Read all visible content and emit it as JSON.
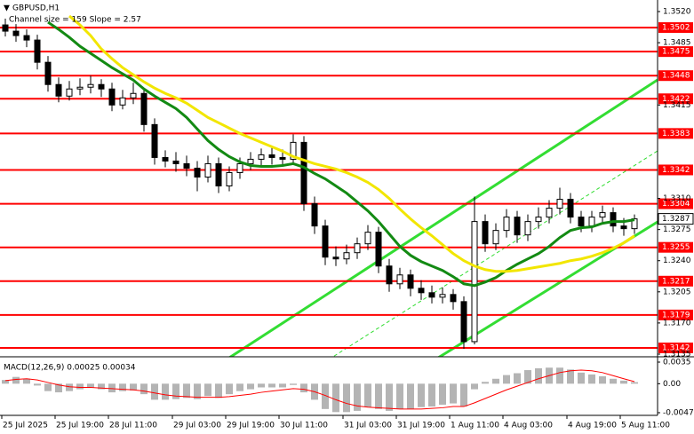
{
  "chart_data": {
    "type": "candlestick",
    "title": "GBPUSD,H1",
    "subtitle": "Channel size = 159 Slope = 2.57",
    "categories": [
      "25 Jul 2025",
      null,
      null,
      null,
      null,
      "25 Jul 19:00",
      null,
      null,
      null,
      null,
      "28 Jul 11:00",
      null,
      null,
      null,
      null,
      null,
      "29 Jul 03:00",
      null,
      null,
      null,
      null,
      "29 Jul 19:00",
      null,
      null,
      null,
      null,
      "30 Jul 11:00",
      null,
      null,
      null,
      null,
      null,
      "31 Jul 03:00",
      null,
      null,
      null,
      null,
      "31 Jul 19:00",
      null,
      null,
      null,
      null,
      "1 Aug 11:00",
      null,
      null,
      null,
      null,
      "4 Aug 03:00",
      null,
      null,
      null,
      null,
      null,
      "4 Aug 19:00",
      null,
      null,
      null,
      null,
      "5 Aug 11:00",
      null
    ],
    "candles": [
      [
        1.3505,
        1.3512,
        1.3492,
        1.3498
      ],
      [
        1.3498,
        1.3506,
        1.3486,
        1.3493
      ],
      [
        1.3493,
        1.35,
        1.348,
        1.3488
      ],
      [
        1.3488,
        1.3494,
        1.3455,
        1.3463
      ],
      [
        1.3463,
        1.347,
        1.343,
        1.3438
      ],
      [
        1.3438,
        1.3446,
        1.3418,
        1.3425
      ],
      [
        1.3425,
        1.3442,
        1.342,
        1.3433
      ],
      [
        1.3433,
        1.3445,
        1.3426,
        1.3435
      ],
      [
        1.3435,
        1.3448,
        1.3428,
        1.3438
      ],
      [
        1.3438,
        1.3444,
        1.3424,
        1.3433
      ],
      [
        1.3433,
        1.344,
        1.3408,
        1.3415
      ],
      [
        1.3415,
        1.3432,
        1.341,
        1.3423
      ],
      [
        1.3423,
        1.344,
        1.3416,
        1.3428
      ],
      [
        1.3428,
        1.3434,
        1.3385,
        1.3393
      ],
      [
        1.3393,
        1.34,
        1.3348,
        1.3356
      ],
      [
        1.3356,
        1.3364,
        1.3345,
        1.3352
      ],
      [
        1.3352,
        1.3362,
        1.334,
        1.3349
      ],
      [
        1.3349,
        1.3358,
        1.3335,
        1.3344
      ],
      [
        1.3344,
        1.3352,
        1.3318,
        1.3334
      ],
      [
        1.3334,
        1.3358,
        1.3328,
        1.3349
      ],
      [
        1.3349,
        1.3356,
        1.3316,
        1.3324
      ],
      [
        1.3324,
        1.3346,
        1.3318,
        1.3339
      ],
      [
        1.3339,
        1.3356,
        1.3332,
        1.3349
      ],
      [
        1.3349,
        1.3362,
        1.3342,
        1.3354
      ],
      [
        1.3354,
        1.3366,
        1.3346,
        1.3359
      ],
      [
        1.3359,
        1.3368,
        1.3348,
        1.3356
      ],
      [
        1.3356,
        1.3365,
        1.3346,
        1.3354
      ],
      [
        1.3354,
        1.3382,
        1.3348,
        1.3373
      ],
      [
        1.3373,
        1.338,
        1.3296,
        1.3304
      ],
      [
        1.3304,
        1.3312,
        1.327,
        1.3279
      ],
      [
        1.3279,
        1.3286,
        1.3235,
        1.3244
      ],
      [
        1.3244,
        1.3256,
        1.3234,
        1.3242
      ],
      [
        1.3242,
        1.3258,
        1.3236,
        1.3249
      ],
      [
        1.3249,
        1.3266,
        1.3242,
        1.3259
      ],
      [
        1.3259,
        1.328,
        1.3252,
        1.3272
      ],
      [
        1.3272,
        1.3278,
        1.3226,
        1.3234
      ],
      [
        1.3234,
        1.3242,
        1.3205,
        1.3214
      ],
      [
        1.3214,
        1.3232,
        1.3208,
        1.3224
      ],
      [
        1.3224,
        1.323,
        1.32,
        1.3209
      ],
      [
        1.3209,
        1.3218,
        1.3196,
        1.3204
      ],
      [
        1.3204,
        1.3212,
        1.3192,
        1.3199
      ],
      [
        1.3199,
        1.321,
        1.3192,
        1.3202
      ],
      [
        1.3202,
        1.3208,
        1.3185,
        1.3194
      ],
      [
        1.3194,
        1.32,
        1.3141,
        1.3149
      ],
      [
        1.3149,
        1.3312,
        1.3146,
        1.3284
      ],
      [
        1.3284,
        1.3292,
        1.325,
        1.3259
      ],
      [
        1.3259,
        1.3282,
        1.3252,
        1.3274
      ],
      [
        1.3274,
        1.3298,
        1.3266,
        1.3289
      ],
      [
        1.3289,
        1.3296,
        1.326,
        1.3269
      ],
      [
        1.3269,
        1.3292,
        1.3262,
        1.3284
      ],
      [
        1.3284,
        1.33,
        1.3276,
        1.3289
      ],
      [
        1.3289,
        1.3308,
        1.3282,
        1.3299
      ],
      [
        1.3299,
        1.3322,
        1.3292,
        1.3309
      ],
      [
        1.3309,
        1.3316,
        1.3282,
        1.3289
      ],
      [
        1.3289,
        1.3296,
        1.3272,
        1.3279
      ],
      [
        1.3279,
        1.3296,
        1.3272,
        1.3289
      ],
      [
        1.3289,
        1.3302,
        1.3282,
        1.3294
      ],
      [
        1.3294,
        1.33,
        1.3272,
        1.3279
      ],
      [
        1.3279,
        1.3288,
        1.3268,
        1.3276
      ],
      [
        1.3276,
        1.3292,
        1.327,
        1.3287
      ]
    ],
    "lines": [
      {
        "color": "#138a13",
        "values": [
          null,
          null,
          null,
          null,
          1.3508,
          1.35,
          1.3491,
          1.3481,
          1.3473,
          1.3465,
          1.3457,
          1.345,
          1.3443,
          1.3433,
          1.3425,
          1.3418,
          1.3411,
          1.3401,
          1.3388,
          1.3375,
          1.3365,
          1.3357,
          1.3351,
          1.3347,
          1.3346,
          1.3346,
          1.3347,
          1.3349,
          1.3345,
          1.3338,
          1.3332,
          1.3324,
          1.3316,
          1.3306,
          1.3296,
          1.3284,
          1.327,
          1.3256,
          1.3246,
          1.3239,
          1.3234,
          1.3229,
          1.3222,
          1.3214,
          1.3212,
          1.3216,
          1.3221,
          1.3229,
          1.3236,
          1.3242,
          1.3248,
          1.3256,
          1.3266,
          1.3274,
          1.3277,
          1.3278,
          1.3282,
          1.3284,
          1.3284,
          1.3286
        ]
      },
      {
        "color": "#f2e600",
        "values": [
          null,
          null,
          null,
          null,
          null,
          null,
          1.3515,
          1.3505,
          1.3493,
          1.3478,
          1.3467,
          1.3457,
          1.3449,
          1.3441,
          1.3434,
          1.3428,
          1.3423,
          1.3417,
          1.3409,
          1.3401,
          1.3395,
          1.3389,
          1.3383,
          1.3378,
          1.3373,
          1.3368,
          1.3363,
          1.3357,
          1.3353,
          1.3349,
          1.3346,
          1.3343,
          1.3339,
          1.3334,
          1.3328,
          1.332,
          1.331,
          1.3298,
          1.3287,
          1.3277,
          1.3268,
          1.3258,
          1.3248,
          1.324,
          1.3234,
          1.323,
          1.3228,
          1.3228,
          1.3229,
          1.3231,
          1.3233,
          1.3235,
          1.3237,
          1.324,
          1.3242,
          1.3245,
          1.3249,
          1.3254,
          1.326,
          1.3268
        ]
      }
    ],
    "levels": {
      "color": "#ff0000",
      "values": [
        1.3502,
        1.3475,
        1.3448,
        1.3422,
        1.3383,
        1.3342,
        1.3304,
        1.3255,
        1.3217,
        1.3179,
        1.3142
      ]
    },
    "ylim": [
      1.3129,
      1.3533
    ],
    "yticks": [
      {
        "value": 1.352,
        "label": "1.3520"
      },
      1.3485,
      1.3415,
      {
        "value": 1.331,
        "label": "1.3310"
      },
      1.3275,
      {
        "value": 1.324,
        "label": "1.3240"
      },
      1.3205,
      {
        "value": 1.317,
        "label": "1.3170"
      },
      1.3135
    ],
    "macd": {
      "label": "MACD(12,26,9) 0.00025 0.00034",
      "ylim": [
        -0.0047,
        0.0035
      ],
      "yticks": [
        0.0035,
        {
          "value": 0,
          "label": "0.00"
        },
        -0.0047
      ],
      "histogram_color": "#b4b4b4",
      "signal_color": "#ff0000",
      "histogram": [
        0.0006,
        0.0011,
        0.0008,
        -0.0003,
        -0.0012,
        -0.0014,
        -0.0012,
        -0.0009,
        -0.0006,
        -0.0009,
        -0.0014,
        -0.0012,
        -0.0011,
        -0.0017,
        -0.0026,
        -0.0026,
        -0.0025,
        -0.0023,
        -0.0025,
        -0.002,
        -0.0023,
        -0.0017,
        -0.0012,
        -0.0009,
        -0.0006,
        -0.0006,
        -0.0006,
        -0.0002,
        -0.0014,
        -0.0026,
        -0.0041,
        -0.0046,
        -0.0046,
        -0.0044,
        -0.0038,
        -0.0041,
        -0.0044,
        -0.0041,
        -0.0041,
        -0.0038,
        -0.0037,
        -0.0034,
        -0.0032,
        -0.0037,
        -0.0009,
        0.0003,
        0.0008,
        0.0014,
        0.0017,
        0.0022,
        0.0025,
        0.0026,
        0.0026,
        0.0023,
        0.0018,
        0.0015,
        0.0012,
        0.0008,
        0.0005,
        0.00025
      ],
      "signal": [
        0.0005,
        0.0007,
        0.0008,
        0.0006,
        0.0002,
        -0.0002,
        -0.0005,
        -0.0006,
        -0.0006,
        -0.0007,
        -0.0008,
        -0.0009,
        -0.001,
        -0.0012,
        -0.0015,
        -0.0018,
        -0.002,
        -0.0021,
        -0.0022,
        -0.0022,
        -0.0022,
        -0.0021,
        -0.0019,
        -0.0017,
        -0.0014,
        -0.0012,
        -0.001,
        -0.0008,
        -0.0009,
        -0.0013,
        -0.0019,
        -0.0026,
        -0.0032,
        -0.0036,
        -0.0038,
        -0.0039,
        -0.004,
        -0.0041,
        -0.0041,
        -0.0041,
        -0.004,
        -0.0039,
        -0.0037,
        -0.0037,
        -0.0031,
        -0.0024,
        -0.0017,
        -0.001,
        -0.0004,
        0.0002,
        0.0008,
        0.0013,
        0.0018,
        0.0021,
        0.0022,
        0.0021,
        0.0018,
        0.0013,
        0.0008,
        0.00034
      ]
    }
  }
}
